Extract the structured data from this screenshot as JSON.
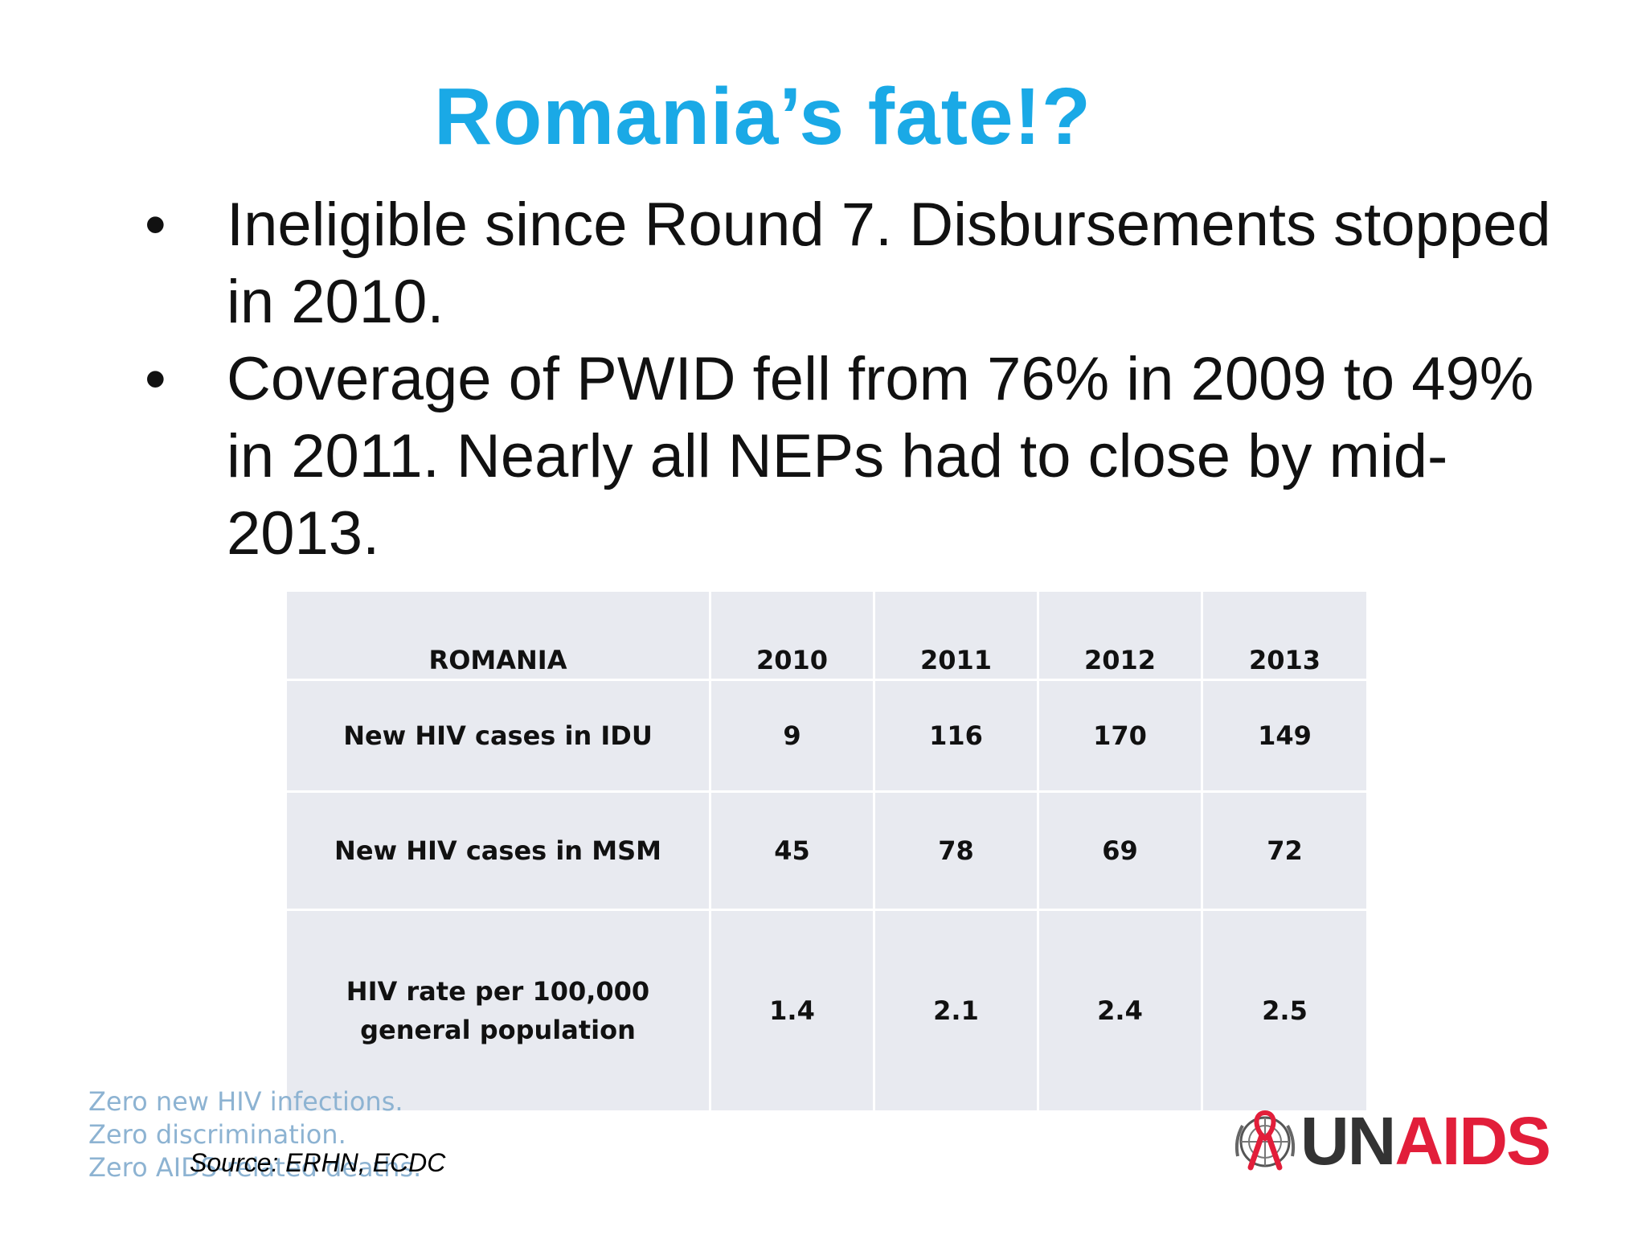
{
  "title": "Romania’s fate!?",
  "bullets": [
    "Ineligible since Round 7. Disbursements stopped in 2010.",
    "Coverage of PWID fell from 76% in 2009 to 49% in 2011. Nearly all NEPs had to close by mid-2013."
  ],
  "bullet_symbol": "•",
  "table": {
    "headers": [
      "ROMANIA",
      "2010",
      "2011",
      "2012",
      "2013"
    ],
    "rows": [
      {
        "label": "New HIV cases in IDU",
        "values": [
          "9",
          "116",
          "170",
          "149"
        ]
      },
      {
        "label": "New HIV cases in MSM",
        "values": [
          "45",
          "78",
          "69",
          "72"
        ]
      },
      {
        "label": "HIV rate per 100,000 general population",
        "values": [
          "1.4",
          "2.1",
          "2.4",
          "2.5"
        ]
      }
    ]
  },
  "footer": {
    "lines": [
      "Zero new HIV infections.",
      "Zero discrimination.",
      "Zero AIDS-related deaths."
    ],
    "source": "Source: ERHN, ECDC"
  },
  "logo": {
    "part1": "UN",
    "part2": "AIDS",
    "icon": "un-emblem-red-ribbon-icon"
  },
  "colors": {
    "title": "#1aa9e6",
    "table_bg": "#e8eaf0",
    "logo_red": "#e21e3a",
    "footer_blue": "#8db3d2"
  }
}
